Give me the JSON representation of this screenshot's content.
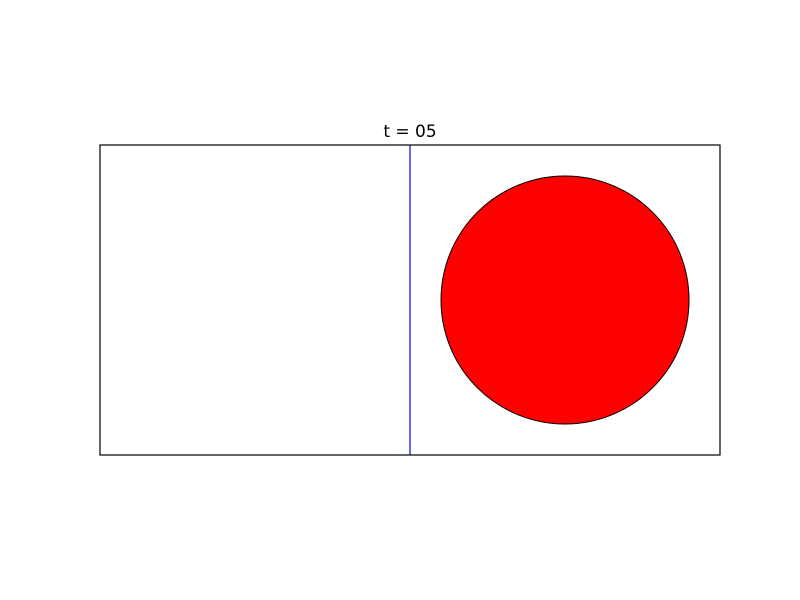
{
  "figure": {
    "title": "t = 05"
  },
  "colors": {
    "background": "#ffffff",
    "axes_frame": "#000000",
    "divider_line": "#0000ff",
    "circle_fill": "#ff0000",
    "circle_edge": "#000000"
  }
}
